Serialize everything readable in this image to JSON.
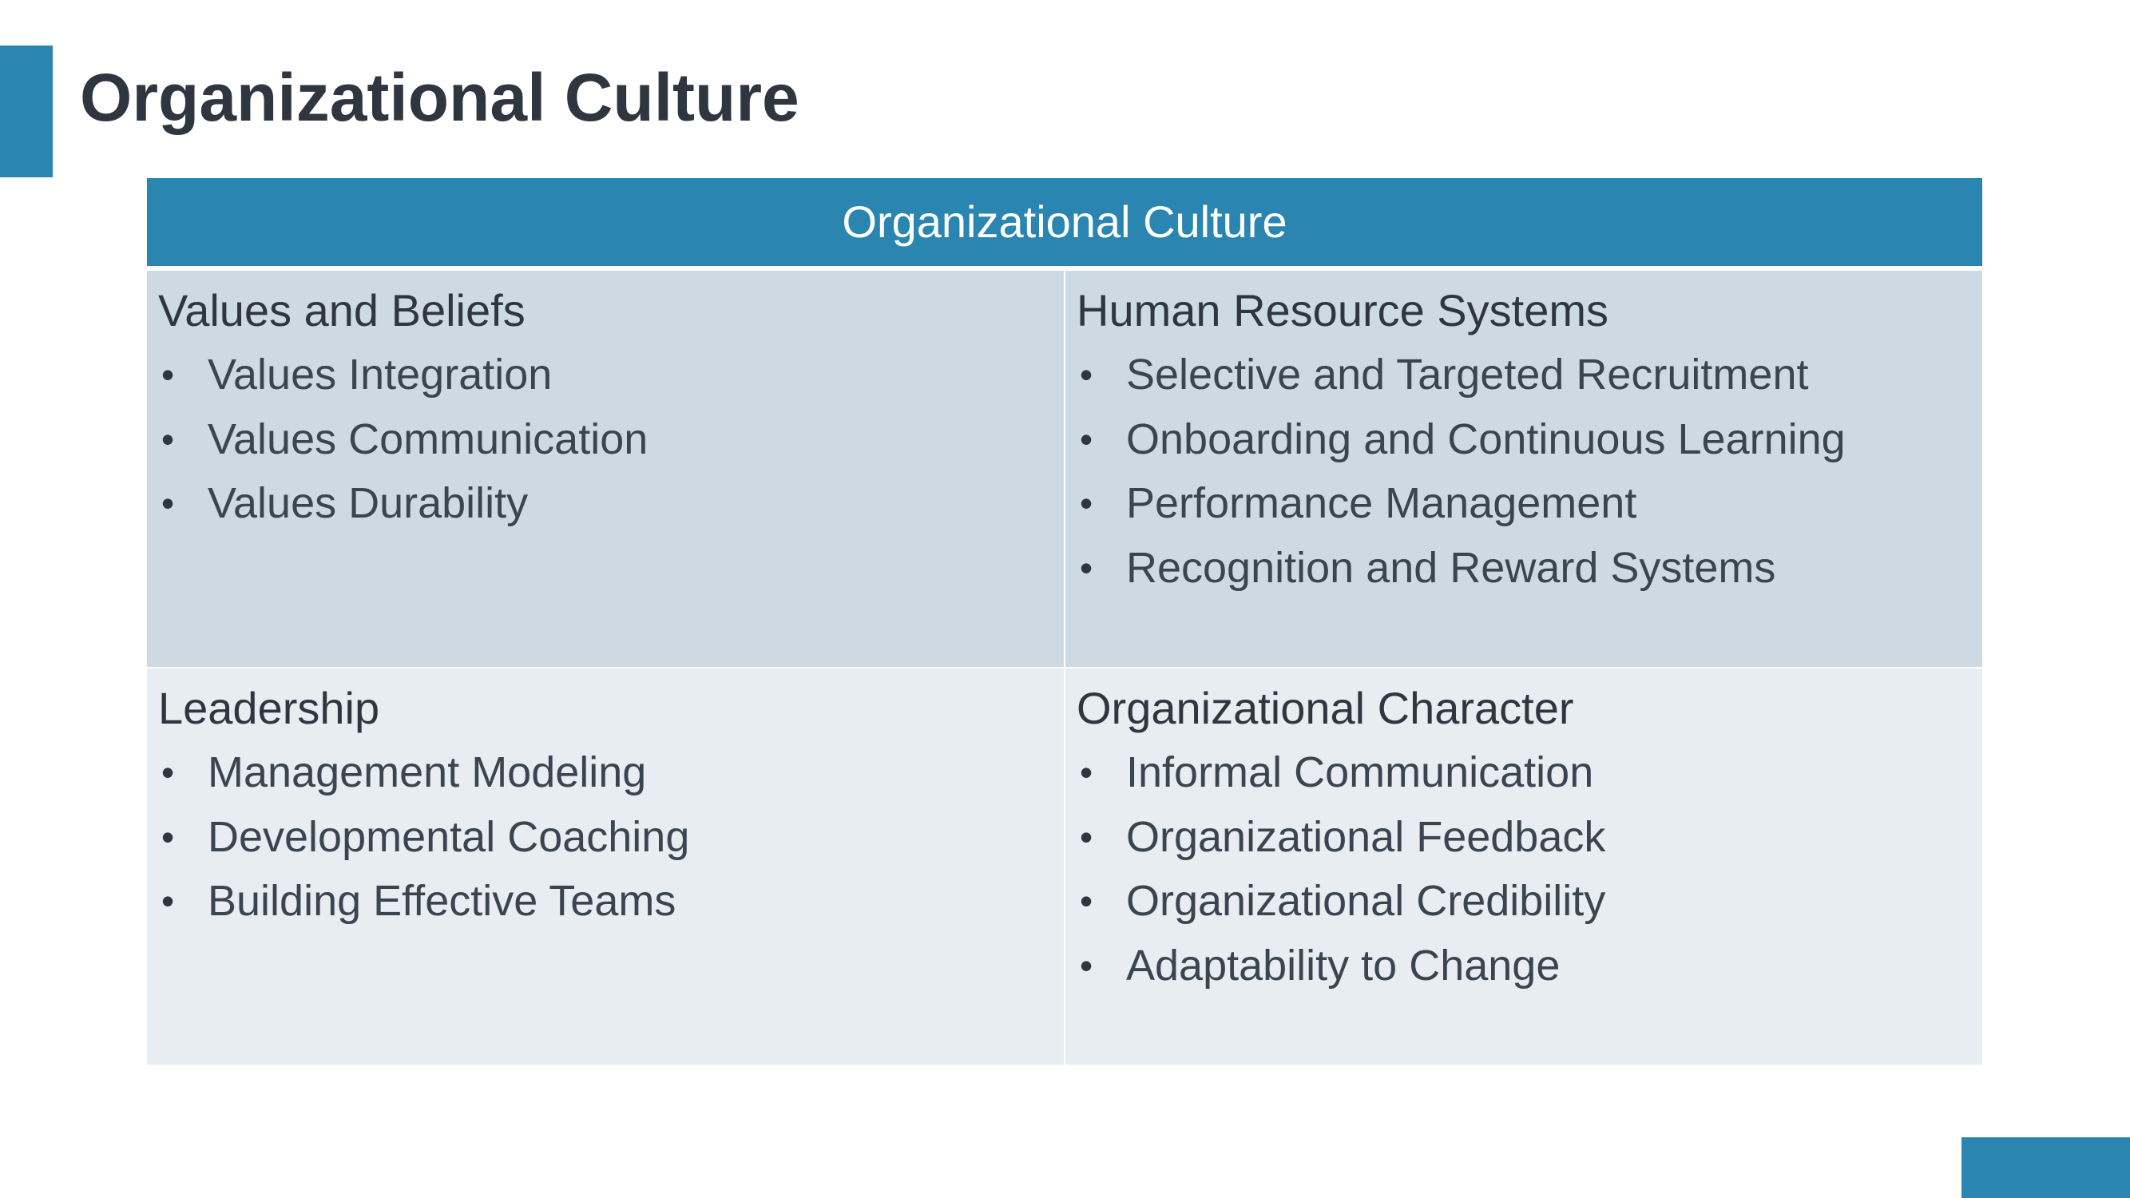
{
  "slide": {
    "title": "Organizational Culture",
    "accent_color": "#2a86b0"
  },
  "table": {
    "header": "Organizational Culture",
    "cells": [
      {
        "heading": "Values and Beliefs",
        "items": [
          "Values Integration",
          "Values Communication",
          "Values Durability"
        ]
      },
      {
        "heading": "Human Resource Systems",
        "items": [
          "Selective and Targeted Recruitment",
          "Onboarding and Continuous Learning",
          "Performance Management",
          "Recognition and Reward Systems"
        ]
      },
      {
        "heading": "Leadership",
        "items": [
          "Management Modeling",
          "Developmental Coaching",
          "Building Effective Teams"
        ]
      },
      {
        "heading": "Organizational Character",
        "items": [
          "Informal Communication",
          "Organizational Feedback",
          "Organizational Credibility",
          "Adaptability to Change"
        ]
      }
    ]
  },
  "colors": {
    "header_fill": "#2a86b0",
    "row1_fill": "#cddae3",
    "row2_fill": "#e7edf1"
  }
}
